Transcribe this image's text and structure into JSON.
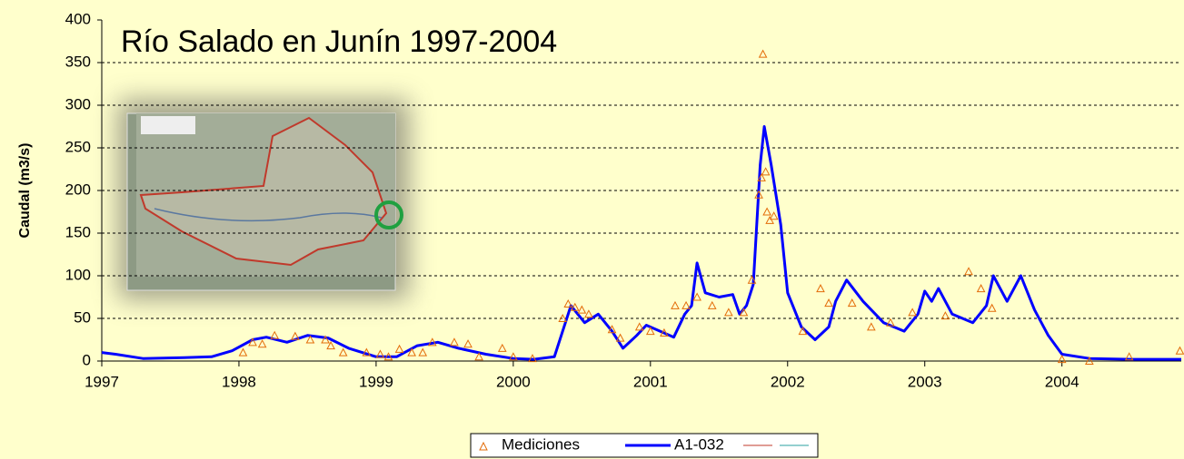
{
  "chart_data": {
    "type": "line",
    "title": "Río Salado en Junín 1997-2004",
    "y_label": "Caudal (m3/s)",
    "xlim": [
      1997,
      2004.87
    ],
    "xticks": [
      1997,
      1998,
      1999,
      2000,
      2001,
      2002,
      2003,
      2004
    ],
    "ylim": [
      0,
      400
    ],
    "yticks": [
      0,
      50,
      100,
      150,
      200,
      250,
      300,
      350,
      400
    ],
    "grid": true,
    "series": [
      {
        "name": "Mediciones",
        "type": "scatter",
        "color": "#e36c09",
        "x": [
          1998.03,
          1998.1,
          1998.17,
          1998.26,
          1998.41,
          1998.52,
          1998.63,
          1998.67,
          1998.76,
          1998.93,
          1999.03,
          1999.09,
          1999.17,
          1999.26,
          1999.34,
          1999.41,
          1999.57,
          1999.67,
          1999.75,
          1999.92,
          2000.0,
          2000.14,
          2000.36,
          2000.4,
          2000.45,
          2000.5,
          2000.55,
          2000.72,
          2000.78,
          2000.92,
          2001.0,
          2001.1,
          2001.18,
          2001.26,
          2001.34,
          2001.45,
          2001.57,
          2001.68,
          2001.74,
          2001.79,
          2001.81,
          2001.82,
          2001.84,
          2001.85,
          2001.87,
          2001.9,
          2002.11,
          2002.24,
          2002.3,
          2002.47,
          2002.61,
          2002.75,
          2002.91,
          2003.15,
          2003.32,
          2003.41,
          2003.49,
          2004.0,
          2004.2,
          2004.49,
          2004.86
        ],
        "values": [
          10,
          22,
          20,
          30,
          29,
          25,
          25,
          18,
          10,
          10,
          8,
          5,
          14,
          10,
          10,
          22,
          22,
          20,
          5,
          15,
          5,
          3,
          50,
          67,
          63,
          60,
          55,
          37,
          27,
          40,
          35,
          33,
          65,
          65,
          75,
          65,
          57,
          57,
          95,
          195,
          215,
          360,
          222,
          175,
          165,
          170,
          35,
          85,
          68,
          68,
          40,
          45,
          57,
          53,
          105,
          85,
          62,
          2,
          0,
          5,
          12
        ]
      },
      {
        "name": "A1-032",
        "type": "line",
        "color": "#0000ff",
        "x": [
          1997.0,
          1997.1,
          1997.3,
          1997.6,
          1997.8,
          1997.95,
          1998.1,
          1998.2,
          1998.35,
          1998.5,
          1998.65,
          1998.8,
          1999.0,
          1999.15,
          1999.3,
          1999.45,
          1999.6,
          1999.8,
          2000.0,
          2000.15,
          2000.3,
          2000.37,
          2000.42,
          2000.52,
          2000.62,
          2000.72,
          2000.8,
          2000.9,
          2000.97,
          2001.07,
          2001.17,
          2001.25,
          2001.3,
          2001.34,
          2001.4,
          2001.5,
          2001.6,
          2001.65,
          2001.7,
          2001.75,
          2001.8,
          2001.83,
          2001.88,
          2001.95,
          2002.0,
          2002.1,
          2002.2,
          2002.3,
          2002.35,
          2002.43,
          2002.55,
          2002.7,
          2002.85,
          2002.95,
          2003.0,
          2003.05,
          2003.1,
          2003.2,
          2003.35,
          2003.45,
          2003.5,
          2003.6,
          2003.7,
          2003.8,
          2003.9,
          2004.0,
          2004.2,
          2004.5,
          2004.87
        ],
        "values": [
          10,
          8,
          3,
          4,
          5,
          12,
          25,
          28,
          22,
          30,
          27,
          15,
          5,
          5,
          18,
          22,
          15,
          8,
          3,
          2,
          5,
          40,
          65,
          45,
          55,
          35,
          15,
          30,
          42,
          35,
          28,
          55,
          65,
          115,
          80,
          75,
          78,
          55,
          65,
          90,
          230,
          275,
          230,
          160,
          80,
          40,
          25,
          40,
          70,
          95,
          70,
          45,
          35,
          55,
          82,
          70,
          85,
          55,
          45,
          65,
          100,
          70,
          100,
          60,
          30,
          8,
          3,
          2,
          2
        ]
      }
    ]
  }
}
